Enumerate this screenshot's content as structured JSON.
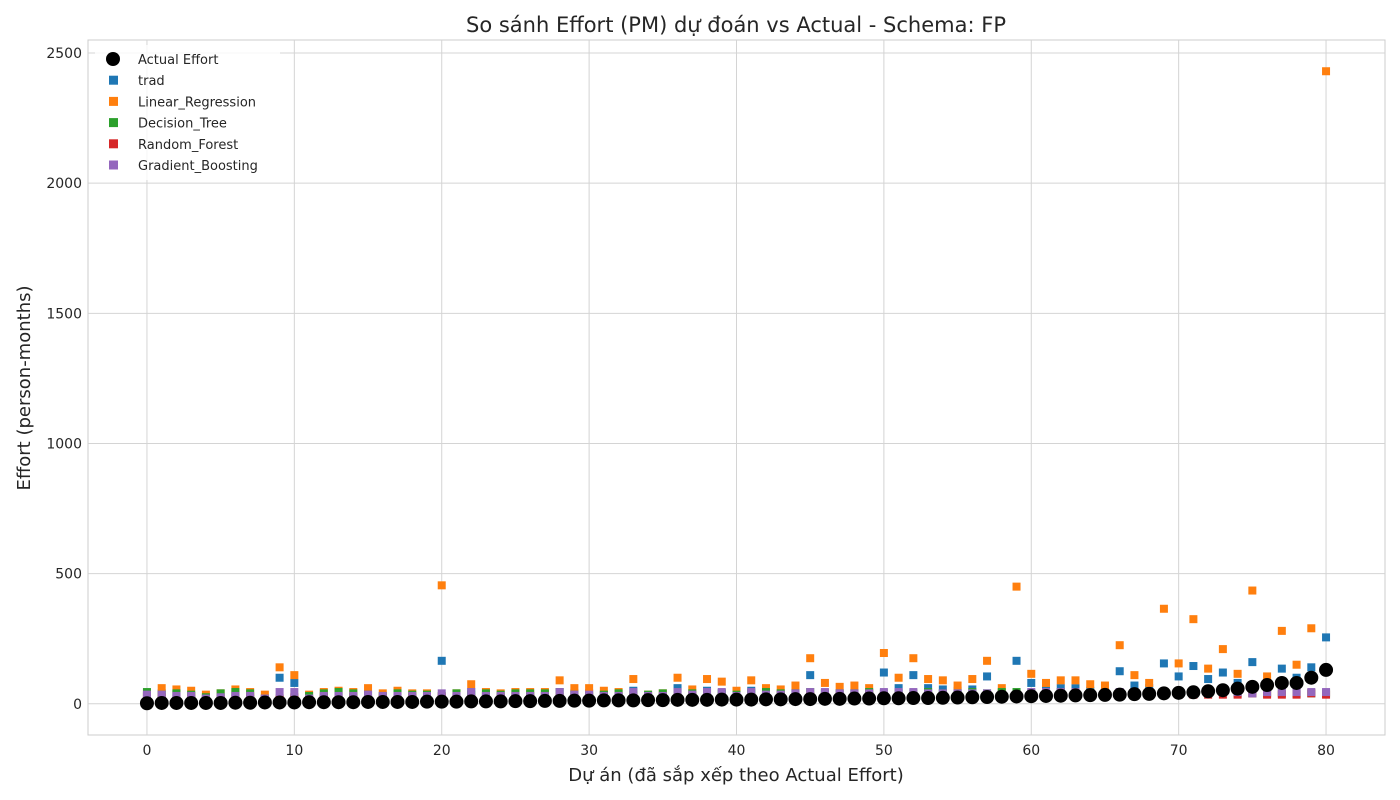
{
  "chart_data": {
    "type": "scatter",
    "title": "So sánh Effort (PM) dự đoán vs Actual - Schema: FP",
    "xlabel": "Dự án (đã sắp xếp theo Actual Effort)",
    "ylabel": "Effort (person-months)",
    "xlim": [
      -4,
      84
    ],
    "ylim": [
      -120,
      2550
    ],
    "xticks": [
      0,
      10,
      20,
      30,
      40,
      50,
      60,
      70,
      80
    ],
    "yticks": [
      0,
      500,
      1000,
      1500,
      2000,
      2500
    ],
    "grid": true,
    "legend_position": "top-left",
    "x": [
      0,
      1,
      2,
      3,
      4,
      5,
      6,
      7,
      8,
      9,
      10,
      11,
      12,
      13,
      14,
      15,
      16,
      17,
      18,
      19,
      20,
      21,
      22,
      23,
      24,
      25,
      26,
      27,
      28,
      29,
      30,
      31,
      32,
      33,
      34,
      35,
      36,
      37,
      38,
      39,
      40,
      41,
      42,
      43,
      44,
      45,
      46,
      47,
      48,
      49,
      50,
      51,
      52,
      53,
      54,
      55,
      56,
      57,
      58,
      59,
      60,
      61,
      62,
      63,
      64,
      65,
      66,
      67,
      68,
      69,
      70,
      71,
      72,
      73,
      74,
      75,
      76,
      77,
      78,
      79,
      80
    ],
    "series": [
      {
        "name": "Actual Effort",
        "marker": "circle",
        "color": "#000000",
        "values": [
          2,
          3,
          3,
          3,
          3,
          3,
          4,
          4,
          5,
          5,
          5,
          6,
          6,
          6,
          6,
          7,
          7,
          7,
          7,
          8,
          8,
          8,
          9,
          9,
          9,
          10,
          10,
          11,
          11,
          12,
          12,
          13,
          13,
          13,
          14,
          14,
          15,
          15,
          15,
          16,
          16,
          16,
          17,
          17,
          18,
          18,
          19,
          19,
          20,
          20,
          21,
          21,
          22,
          22,
          23,
          24,
          25,
          26,
          27,
          28,
          29,
          30,
          31,
          32,
          33,
          34,
          35,
          37,
          38,
          40,
          42,
          44,
          48,
          52,
          58,
          65,
          72,
          80,
          80,
          100,
          130
        ]
      },
      {
        "name": "trad",
        "marker": "square",
        "color": "#1f77b4",
        "values": [
          30,
          40,
          35,
          30,
          20,
          25,
          30,
          25,
          20,
          100,
          80,
          20,
          25,
          30,
          25,
          30,
          25,
          35,
          25,
          25,
          165,
          25,
          45,
          30,
          25,
          30,
          30,
          30,
          45,
          40,
          40,
          35,
          30,
          50,
          25,
          25,
          60,
          30,
          50,
          40,
          35,
          50,
          35,
          35,
          40,
          110,
          40,
          35,
          40,
          40,
          120,
          60,
          110,
          60,
          55,
          50,
          55,
          105,
          40,
          165,
          80,
          60,
          60,
          60,
          50,
          45,
          125,
          70,
          60,
          155,
          105,
          145,
          95,
          120,
          80,
          160,
          70,
          135,
          100,
          140,
          255
        ]
      },
      {
        "name": "Linear_Regression",
        "marker": "square",
        "color": "#ff7f0e",
        "values": [
          40,
          60,
          55,
          50,
          35,
          40,
          55,
          45,
          35,
          140,
          110,
          35,
          45,
          50,
          45,
          60,
          40,
          50,
          40,
          40,
          455,
          40,
          75,
          45,
          40,
          45,
          45,
          45,
          90,
          60,
          60,
          50,
          45,
          95,
          35,
          40,
          100,
          55,
          95,
          85,
          50,
          90,
          60,
          55,
          70,
          175,
          80,
          65,
          70,
          60,
          195,
          100,
          175,
          95,
          90,
          70,
          95,
          165,
          60,
          450,
          115,
          80,
          90,
          90,
          75,
          70,
          225,
          110,
          80,
          365,
          155,
          325,
          135,
          210,
          115,
          435,
          105,
          280,
          150,
          290,
          2430
        ]
      },
      {
        "name": "Decision_Tree",
        "marker": "square",
        "color": "#2ca02c",
        "values": [
          45,
          35,
          40,
          35,
          25,
          40,
          45,
          40,
          20,
          20,
          20,
          30,
          40,
          45,
          40,
          35,
          30,
          40,
          35,
          35,
          30,
          40,
          35,
          40,
          35,
          40,
          40,
          40,
          45,
          35,
          30,
          35,
          40,
          35,
          35,
          40,
          45,
          40,
          40,
          40,
          35,
          40,
          45,
          40,
          40,
          45,
          40,
          40,
          40,
          45,
          40,
          40,
          40,
          45,
          40,
          40,
          45,
          40,
          45,
          45,
          40,
          45,
          45,
          45,
          40,
          40,
          40,
          45,
          45,
          45,
          40,
          45,
          40,
          45,
          40,
          40,
          40,
          40,
          40,
          40,
          40
        ]
      },
      {
        "name": "Random_Forest",
        "marker": "square",
        "color": "#d62728",
        "values": [
          25,
          25,
          20,
          20,
          15,
          15,
          20,
          20,
          15,
          20,
          25,
          15,
          20,
          20,
          20,
          20,
          20,
          20,
          20,
          20,
          25,
          20,
          20,
          20,
          20,
          20,
          20,
          20,
          25,
          25,
          25,
          20,
          20,
          25,
          20,
          20,
          25,
          25,
          25,
          25,
          25,
          25,
          25,
          25,
          25,
          30,
          30,
          30,
          30,
          30,
          30,
          30,
          30,
          30,
          30,
          30,
          30,
          35,
          30,
          35,
          35,
          35,
          35,
          35,
          35,
          35,
          35,
          35,
          35,
          40,
          35,
          35,
          35,
          35,
          35,
          40,
          35,
          35,
          35,
          40,
          35
        ]
      },
      {
        "name": "Gradient_Boosting",
        "marker": "square",
        "color": "#9467bd",
        "values": [
          35,
          35,
          30,
          30,
          20,
          25,
          30,
          30,
          20,
          45,
          45,
          20,
          30,
          30,
          30,
          35,
          30,
          30,
          30,
          30,
          40,
          30,
          45,
          30,
          30,
          30,
          30,
          30,
          45,
          35,
          35,
          30,
          30,
          45,
          30,
          30,
          45,
          35,
          45,
          45,
          30,
          45,
          35,
          35,
          40,
          45,
          45,
          40,
          40,
          40,
          45,
          45,
          45,
          40,
          40,
          40,
          40,
          40,
          35,
          35,
          45,
          45,
          45,
          45,
          40,
          40,
          45,
          45,
          45,
          45,
          45,
          45,
          45,
          45,
          45,
          40,
          45,
          45,
          45,
          45,
          45
        ]
      }
    ]
  }
}
